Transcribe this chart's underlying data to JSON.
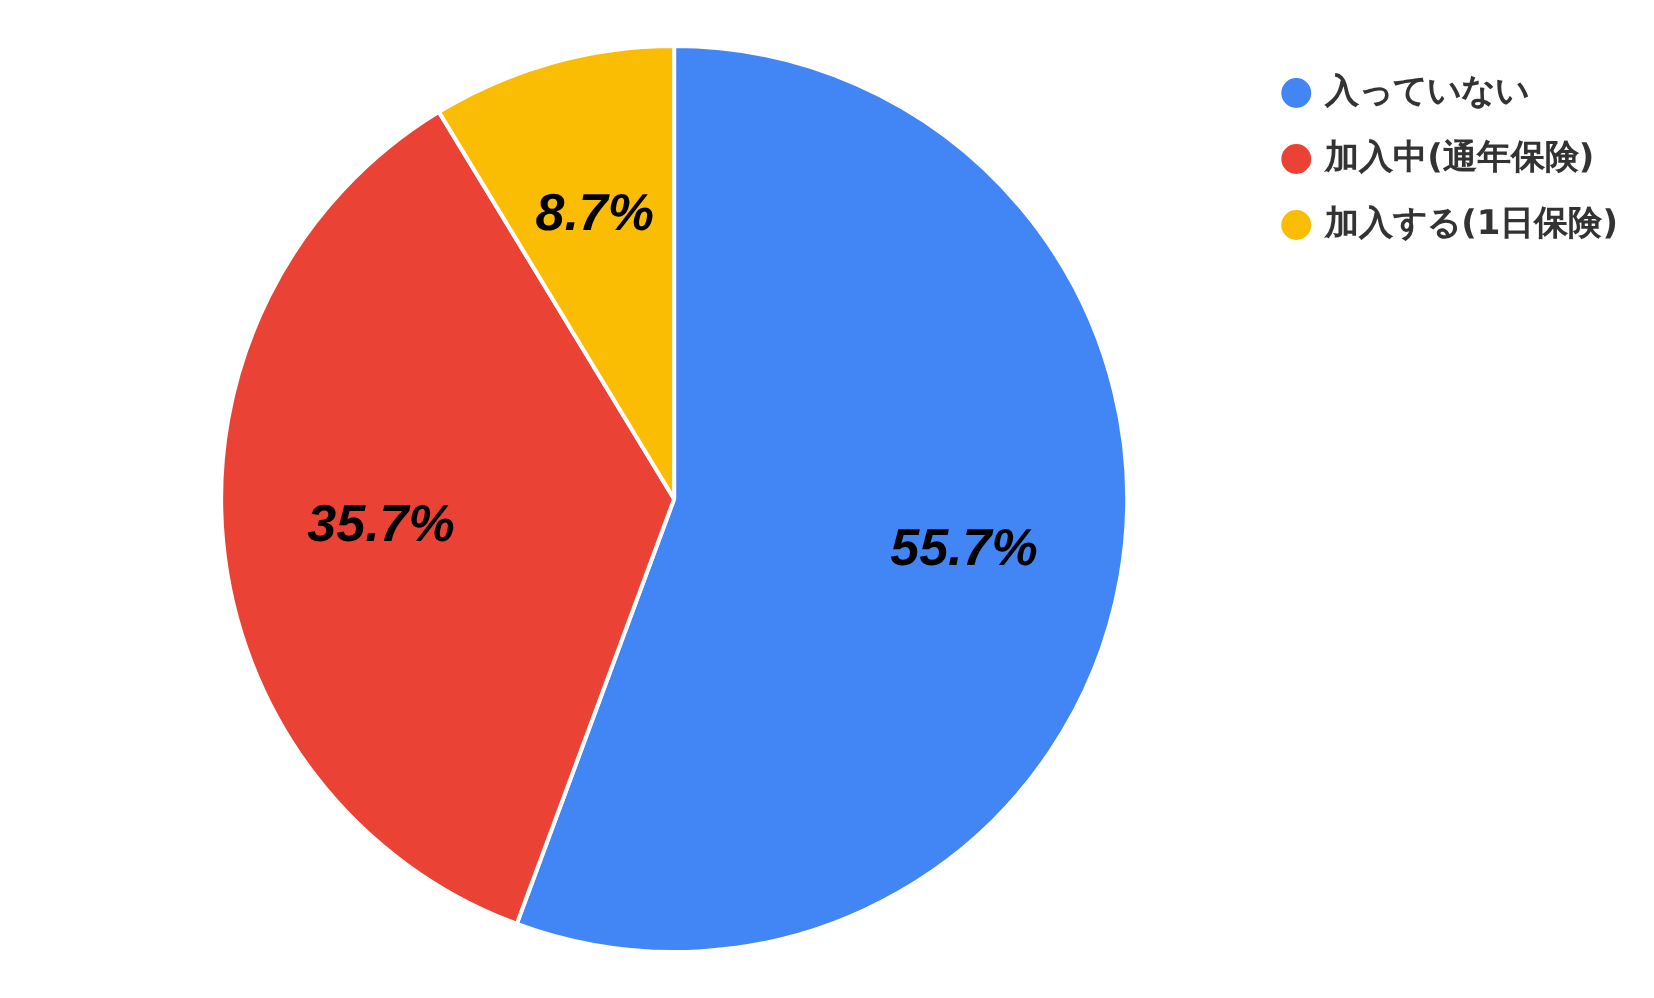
{
  "chart_data": {
    "type": "pie",
    "categories": [
      "入っていない",
      "加入中(通年保険)",
      "加入する(1日保険)"
    ],
    "values": [
      55.7,
      35.7,
      8.7
    ],
    "colors": [
      "#4285f4",
      "#ea4335",
      "#fbbc04"
    ],
    "value_labels": [
      "55.7%",
      "35.7%",
      "8.7%"
    ],
    "legend": "top right"
  }
}
